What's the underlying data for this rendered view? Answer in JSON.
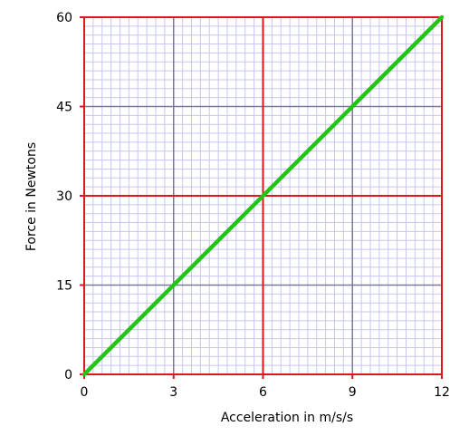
{
  "chart_data": {
    "type": "line",
    "title": "",
    "xlabel": "Acceleration in m/s/s",
    "ylabel": "Force in Newtons",
    "xlim": [
      0,
      12
    ],
    "ylim": [
      0,
      60
    ],
    "x_ticks": [
      0,
      3,
      6,
      9,
      12
    ],
    "y_ticks": [
      0,
      15,
      30,
      45,
      60
    ],
    "x_tick_labels": [
      "0",
      "3",
      "6",
      "9",
      "12"
    ],
    "y_tick_labels": [
      "0",
      "15",
      "30",
      "45",
      "60"
    ],
    "grid": true,
    "legend": "none",
    "series": [
      {
        "x": [
          0,
          12
        ],
        "y": [
          0,
          60
        ],
        "color": "#22c416"
      }
    ],
    "colors": {
      "minor_grid": "#c7c7f2",
      "mid_grid": "#7a7a98",
      "major_grid": "#e0161d",
      "line": "#22c416"
    }
  }
}
